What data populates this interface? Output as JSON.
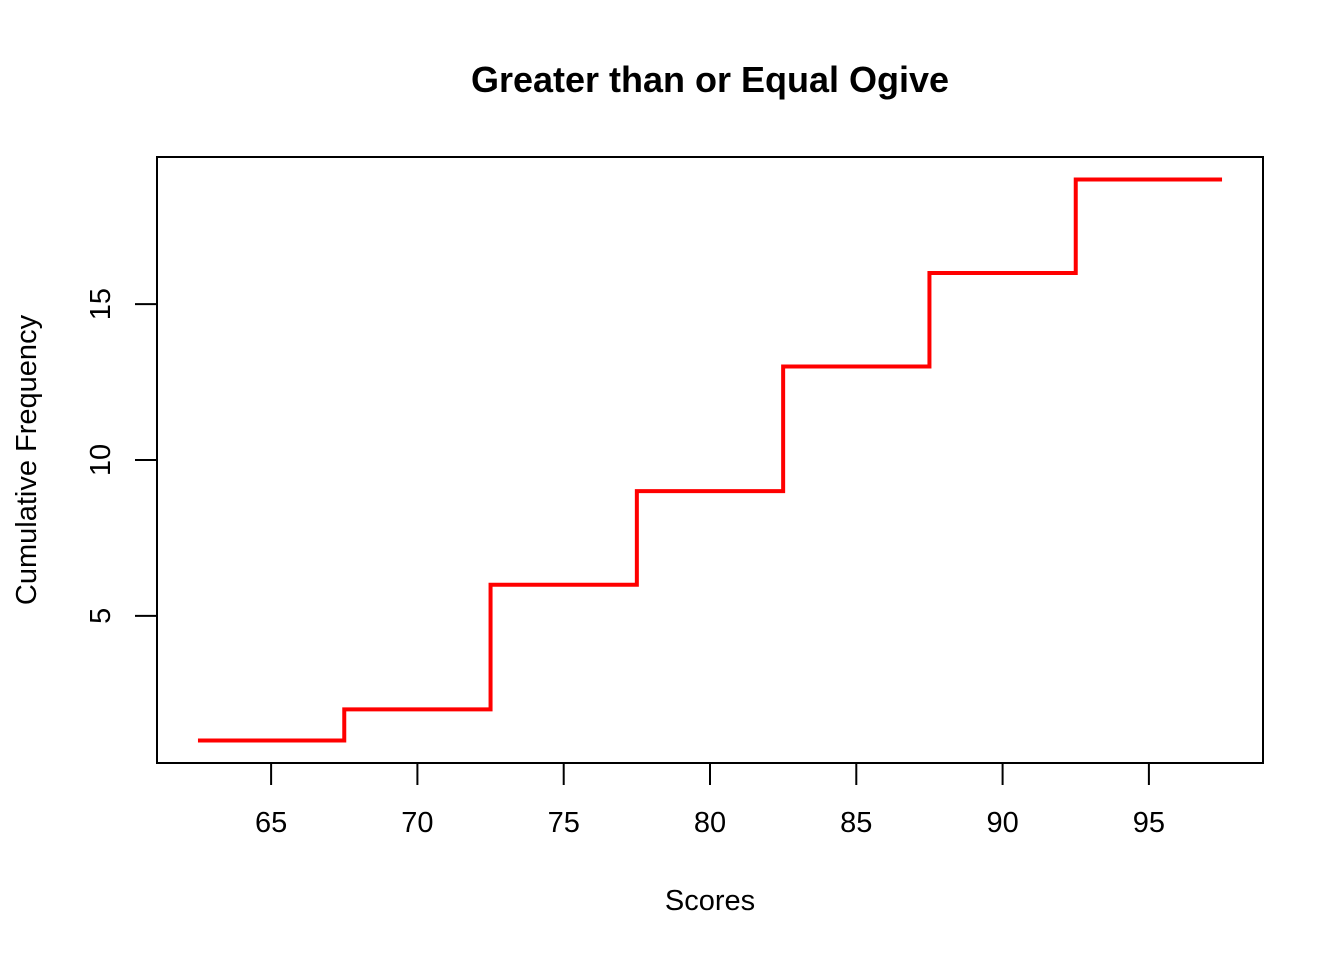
{
  "chart_data": {
    "type": "line",
    "step": true,
    "title": "Greater than or Equal Ogive",
    "xlabel": "Scores",
    "ylabel": "Cumulative Frequency",
    "xlim": [
      61.1,
      98.9
    ],
    "ylim": [
      0.28,
      19.72
    ],
    "x_ticks": [
      65,
      70,
      75,
      80,
      85,
      90,
      95
    ],
    "y_ticks": [
      5,
      10,
      15
    ],
    "grid": false,
    "line_color": "#ff0000",
    "series": [
      {
        "x": [
          62.5,
          67.5,
          72.5,
          77.5,
          82.5,
          87.5,
          92.5,
          97.5
        ],
        "y": [
          1,
          2,
          6,
          9,
          13,
          16,
          19,
          19
        ]
      }
    ]
  }
}
